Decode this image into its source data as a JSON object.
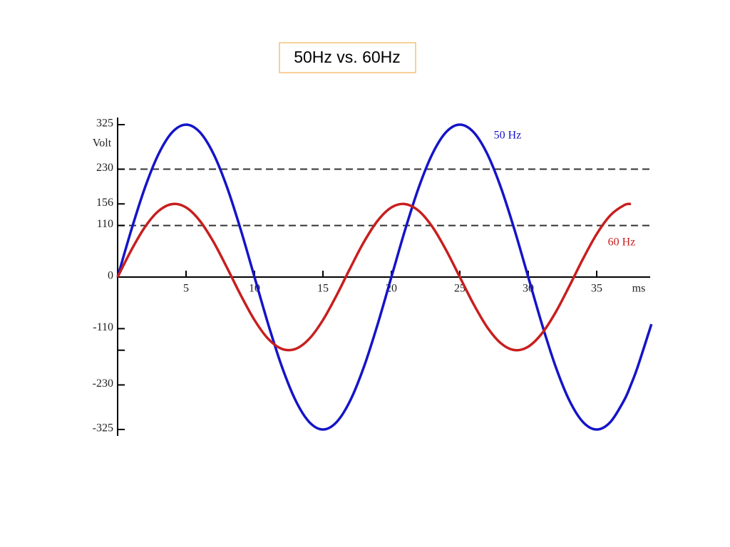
{
  "chart_data": {
    "type": "line",
    "title": "50Hz vs. 60Hz",
    "ylabel": "Volt",
    "xlabel": "ms",
    "x": [
      0,
      1,
      2,
      3,
      4,
      5,
      6,
      7,
      8,
      9,
      10,
      11,
      12,
      13,
      14,
      15,
      16,
      17,
      18,
      19,
      20,
      21,
      22,
      23,
      24,
      25,
      26,
      27,
      28,
      29,
      30,
      31,
      32,
      33,
      34,
      35,
      36,
      37,
      37.5,
      38,
      39
    ],
    "series": [
      {
        "name": "50 Hz",
        "color": "#1414c8",
        "values": [
          0,
          100.4,
          191.0,
          262.9,
          309.1,
          325,
          309.1,
          262.9,
          191.0,
          100.4,
          0,
          -100.4,
          -191.0,
          -262.9,
          -309.1,
          -325,
          -309.1,
          -262.9,
          -191.0,
          -100.4,
          0,
          100.4,
          191.0,
          262.9,
          309.1,
          325,
          309.1,
          262.9,
          191.0,
          100.4,
          0,
          -100.4,
          -191.0,
          -262.9,
          -309.1,
          -325,
          -309.1,
          -262.9,
          -229.8,
          -191.0,
          -100.4
        ]
      },
      {
        "name": "60 Hz",
        "color": "#c81e1e",
        "values": [
          0,
          57.4,
          106.8,
          141.1,
          155.7,
          148.4,
          120.2,
          75.2,
          19.5,
          -38.8,
          -91.7,
          -131.7,
          -153.2,
          -153.2,
          -131.7,
          -91.7,
          -38.8,
          19.5,
          75.2,
          120.2,
          148.4,
          155.7,
          141.1,
          106.8,
          57.4,
          0,
          -57.4,
          -106.8,
          -141.1,
          -155.7,
          -148.4,
          -120.2,
          -75.2,
          -19.5,
          38.8,
          91.7,
          131.7,
          153.2,
          156,
          null,
          null
        ]
      }
    ],
    "xlim": [
      0,
      39
    ],
    "xticks": [
      5,
      10,
      15,
      20,
      25,
      30,
      35
    ],
    "ylim": [
      -325,
      325
    ],
    "yticks": [
      325,
      230,
      156,
      110,
      0,
      -110,
      -230,
      -325
    ],
    "yminor": [
      -156
    ],
    "dashed_lines": [
      230,
      110
    ]
  }
}
